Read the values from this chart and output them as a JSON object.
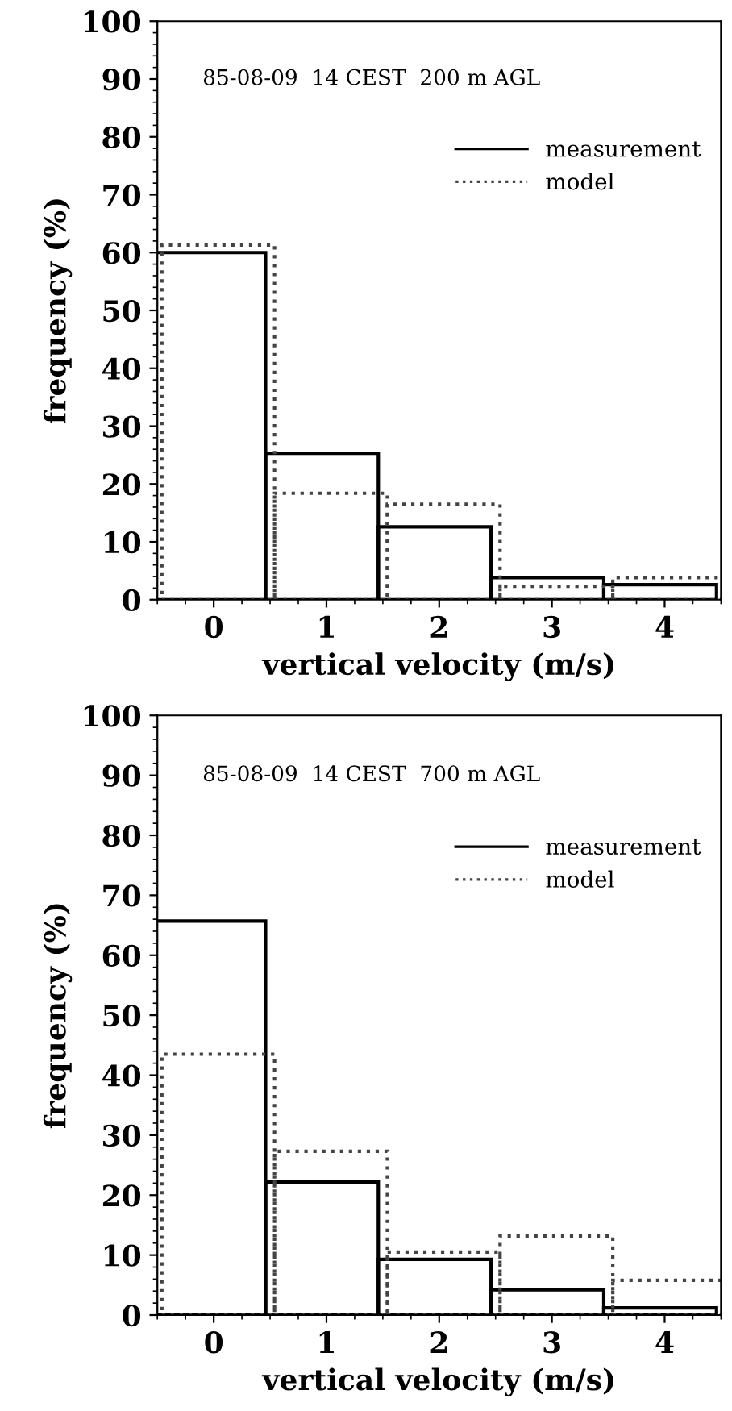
{
  "chart_data": [
    {
      "type": "bar",
      "xlabel": "vertical velocity (m/s)",
      "ylabel": "frequency (%)",
      "annotations": [
        "85-08-09  14 CEST  200 m AGL"
      ],
      "categories": [
        "0",
        "1",
        "2",
        "3",
        "4"
      ],
      "ylim": [
        0,
        100
      ],
      "yticks": [
        0,
        10,
        20,
        30,
        40,
        50,
        60,
        70,
        80,
        90,
        100
      ],
      "legend": "top right",
      "grid": false,
      "series": [
        {
          "name": "measurement",
          "color": "#000000",
          "line_style": "solid",
          "values": [
            60,
            25.3,
            12.6,
            3.8,
            2.6
          ]
        },
        {
          "name": "model",
          "color": "#444444",
          "line_style": "dotted",
          "values": [
            61.3,
            18.4,
            16.5,
            2.3,
            3.8
          ]
        }
      ]
    },
    {
      "type": "bar",
      "xlabel": "vertical velocity (m/s)",
      "ylabel": "frequency (%)",
      "annotations": [
        "85-08-09  14 CEST  700 m AGL"
      ],
      "categories": [
        "0",
        "1",
        "2",
        "3",
        "4"
      ],
      "ylim": [
        0,
        100
      ],
      "yticks": [
        0,
        10,
        20,
        30,
        40,
        50,
        60,
        70,
        80,
        90,
        100
      ],
      "legend": "top right",
      "grid": false,
      "series": [
        {
          "name": "measurement",
          "color": "#000000",
          "line_style": "solid",
          "values": [
            65.7,
            22.2,
            9.3,
            4.2,
            1.2
          ]
        },
        {
          "name": "model",
          "color": "#444444",
          "line_style": "dotted",
          "values": [
            43.5,
            27.3,
            10.5,
            13.2,
            5.8
          ]
        }
      ]
    }
  ]
}
